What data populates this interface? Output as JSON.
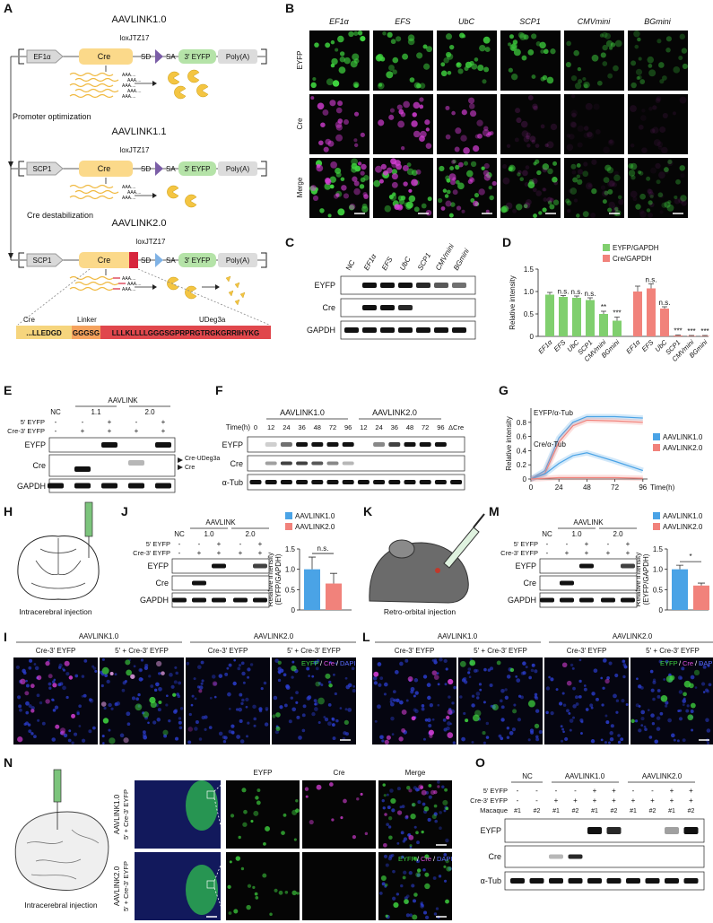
{
  "A": {
    "label": "A",
    "constructs": [
      {
        "title": "AAVLINK1.0",
        "lox": "loxJTZ17",
        "promoter": "EF1α",
        "parts": [
          "Cre",
          "SD",
          "SA",
          "3′ EYFP",
          "Poly(A)"
        ]
      },
      {
        "title": "AAVLINK1.1",
        "lox": "loxJTZ17",
        "promoter": "SCP1",
        "parts": [
          "Cre",
          "SD",
          "SA",
          "3′ EYFP",
          "Poly(A)"
        ]
      },
      {
        "title": "AAVLINK2.0",
        "lox": "loxJTZ17",
        "promoter": "SCP1",
        "parts": [
          "Cre",
          "SD",
          "SA",
          "3′ EYFP",
          "Poly(A)"
        ]
      }
    ],
    "polyA_tail": "AAA....",
    "steps": [
      "Promoter optimization",
      "Cre destabilization"
    ],
    "fusion_labels": [
      "Cre",
      "Linker",
      "UDeg3a"
    ],
    "sequence": [
      "...LLEDGD",
      "GGGSG",
      "LLLKLLLLGGGSGPRPRGTRGKGRRIHYKG"
    ]
  },
  "B": {
    "label": "B",
    "columns": [
      "EF1α",
      "EFS",
      "UbC",
      "SCP1",
      "CMVmini",
      "BGmini"
    ],
    "rows": [
      "EYFP",
      "Cre",
      "Merge"
    ]
  },
  "C": {
    "label": "C",
    "lanes": [
      "NC",
      "EF1α",
      "EFS",
      "UbC",
      "SCP1",
      "CMVmini",
      "BGmini"
    ],
    "rows": [
      "EYFP",
      "Cre",
      "GAPDH"
    ]
  },
  "E": {
    "label": "E",
    "group": "AAVLINK",
    "lanes": [
      "NC",
      "1.1",
      "2.0"
    ],
    "conditions": [
      {
        "name": "5′ EYFP",
        "signs": [
          "-",
          "-",
          "+",
          "-",
          "+"
        ]
      },
      {
        "name": "Cre-3′ EYFP",
        "signs": [
          "-",
          "+",
          "+",
          "+",
          "+"
        ]
      }
    ],
    "rows": [
      "EYFP",
      "Cre",
      "GAPDH"
    ],
    "arrows": [
      "Cre-UDeg3a",
      "Cre"
    ]
  },
  "F": {
    "label": "F",
    "groups": [
      "AAVLINK1.0",
      "AAVLINK2.0"
    ],
    "time_label": "Time(h)",
    "lanes": [
      "0",
      "12",
      "24",
      "36",
      "48",
      "72",
      "96",
      "12",
      "24",
      "36",
      "48",
      "72",
      "96",
      "ΔCre"
    ],
    "rows": [
      "EYFP",
      "Cre",
      "α-Tub"
    ]
  },
  "H": {
    "label": "H",
    "caption": "Intracerebral injection"
  },
  "J": {
    "label": "J",
    "group": "AAVLINK",
    "lanes": [
      "NC",
      "1.0",
      "2.0"
    ],
    "conditions": [
      {
        "name": "5′ EYFP",
        "signs": [
          "-",
          "-",
          "+",
          "-",
          "+"
        ]
      },
      {
        "name": "Cre-3′ EYFP",
        "signs": [
          "-",
          "+",
          "+",
          "+",
          "+"
        ]
      }
    ],
    "rows": [
      "EYFP",
      "Cre",
      "GAPDH"
    ]
  },
  "K": {
    "label": "K",
    "caption": "Retro-orbital injection"
  },
  "M": {
    "label": "M",
    "group": "AAVLINK",
    "lanes": [
      "NC",
      "1.0",
      "2.0"
    ],
    "conditions": [
      {
        "name": "5′ EYFP",
        "signs": [
          "-",
          "-",
          "+",
          "-",
          "+"
        ]
      },
      {
        "name": "Cre-3′ EYFP",
        "signs": [
          "-",
          "+",
          "+",
          "+",
          "+"
        ]
      }
    ],
    "rows": [
      "EYFP",
      "Cre",
      "GAPDH"
    ]
  },
  "I": {
    "label": "I",
    "groups": [
      "AAVLINK1.0",
      "AAVLINK2.0"
    ],
    "conditions": [
      "Cre-3′ EYFP",
      "5′ + Cre-3′ EYFP",
      "Cre-3′ EYFP",
      "5′ + Cre-3′ EYFP"
    ],
    "stain": [
      "EYFP",
      "/",
      "Cre",
      "/",
      "DAPI"
    ]
  },
  "L": {
    "label": "L",
    "groups": [
      "AAVLINK1.0",
      "AAVLINK2.0"
    ],
    "conditions": [
      "Cre-3′ EYFP",
      "5′ + Cre-3′ EYFP",
      "Cre-3′ EYFP",
      "5′ + Cre-3′ EYFP"
    ],
    "stain": [
      "EYFP",
      "/",
      "Cre",
      "/",
      "DAPI"
    ]
  },
  "N": {
    "label": "N",
    "caption": "Intracerebral injection",
    "columns": [
      "EYFP",
      "Cre",
      "Merge"
    ],
    "rows": [
      {
        "vector": "AAVLINK1.0",
        "condition": "5′ + Cre-3′ EYFP"
      },
      {
        "vector": "AAVLINK2.0",
        "condition": "5′ + Cre-3′ EYFP"
      }
    ],
    "stain": [
      "EYFP",
      "/",
      "Cre",
      "/",
      "DAPI"
    ]
  },
  "O": {
    "label": "O",
    "groups": [
      "NC",
      "AAVLINK1.0",
      "AAVLINK2.0"
    ],
    "conditions": [
      {
        "name": "5′ EYFP",
        "signs": [
          "-",
          "-",
          "-",
          "-",
          "+",
          "+",
          "-",
          "-",
          "+",
          "+"
        ]
      },
      {
        "name": "Cre-3′ EYFP",
        "signs": [
          "-",
          "-",
          "+",
          "+",
          "+",
          "+",
          "+",
          "+",
          "+",
          "+"
        ]
      },
      {
        "name": "Macaque",
        "signs": [
          "#1",
          "#2",
          "#1",
          "#2",
          "#1",
          "#2",
          "#1",
          "#2",
          "#1",
          "#2"
        ]
      }
    ],
    "rows": [
      "EYFP",
      "Cre",
      "α-Tub"
    ]
  },
  "chart_data": [
    {
      "panel": "D",
      "type": "bar",
      "ylabel": "Relative intensity",
      "categories": [
        "EF1α",
        "EFS",
        "UbC",
        "SCP1",
        "CMVmini",
        "BGmini"
      ],
      "series": [
        {
          "name": "EYFP/GAPDH",
          "color": "#80cf6e",
          "values": [
            0.93,
            0.88,
            0.86,
            0.81,
            0.5,
            0.35
          ],
          "errors": [
            0.05,
            0.03,
            0.04,
            0.05,
            0.06,
            0.08
          ],
          "annotations": [
            null,
            "n.s.",
            "n.s.",
            "n.s.",
            "**",
            "***"
          ]
        },
        {
          "name": "Cre/GAPDH",
          "color": "#f1827b",
          "values": [
            1.0,
            1.07,
            0.62,
            0.02,
            0.01,
            0.01
          ],
          "errors": [
            0.12,
            0.1,
            0.04,
            0.01,
            0.01,
            0.01
          ],
          "annotations": [
            null,
            "n.s.",
            "n.s.",
            "***",
            "***",
            "***"
          ]
        }
      ],
      "ylim": [
        0,
        1.5
      ],
      "yticks": [
        0,
        0.5,
        {
          "value": 1,
          "label": "1.0"
        },
        1.5
      ]
    },
    {
      "panel": "G",
      "type": "line",
      "ylabel": "Relative intensity",
      "xlabel": "Time(h)",
      "x": [
        0,
        12,
        24,
        36,
        48,
        72,
        96
      ],
      "xlim": [
        0,
        100
      ],
      "xticks": [
        0,
        24,
        48,
        72,
        96
      ],
      "ylim": [
        0,
        1
      ],
      "yticks": [
        0,
        0.2,
        0.4,
        0.6,
        0.8
      ],
      "panels": [
        {
          "label": "EYFP/α-Tub",
          "series": [
            {
              "name": "AAVLINK1.0",
              "color": "#4aa3e6",
              "values": [
                0,
                0.12,
                0.58,
                0.8,
                0.88,
                0.88,
                0.86
              ]
            },
            {
              "name": "AAVLINK2.0",
              "color": "#f1827b",
              "values": [
                0,
                0.08,
                0.52,
                0.75,
                0.83,
                0.82,
                0.8
              ]
            }
          ]
        },
        {
          "label": "Cre/α-Tub",
          "series": [
            {
              "name": "AAVLINK1.0",
              "color": "#4aa3e6",
              "values": [
                0,
                0.07,
                0.22,
                0.33,
                0.37,
                0.25,
                0.12
              ]
            },
            {
              "name": "AAVLINK2.0",
              "color": "#f1827b",
              "values": [
                0,
                0.01,
                0.02,
                0.02,
                0.02,
                0.02,
                0.01
              ]
            }
          ]
        }
      ]
    },
    {
      "type": "bar",
      "ylabel": [
        "Relative intensity",
        "(EYFP/GAPDH)"
      ],
      "series": [
        {
          "name": "AAVLINK1.0",
          "color": "#4aa3e6",
          "values": [
            1.0
          ],
          "errors": [
            0.3
          ]
        },
        {
          "name": "AAVLINK2.0",
          "color": "#f1827b",
          "values": [
            0.65
          ],
          "errors": [
            0.25
          ]
        }
      ],
      "annotation": "n.s.",
      "ylim": [
        0,
        1.5
      ],
      "yticks": [
        0,
        0.5,
        {
          "value": 1,
          "label": "1.0"
        },
        1.5
      ]
    },
    {
      "type": "bar",
      "ylabel": [
        "Relative intensity",
        "(EYFP/GAPDH)"
      ],
      "series": [
        {
          "name": "AAVLINK1.0",
          "color": "#4aa3e6",
          "values": [
            1.0
          ],
          "errors": [
            0.1
          ]
        },
        {
          "name": "AAVLINK2.0",
          "color": "#f1827b",
          "values": [
            0.6
          ],
          "errors": [
            0.06
          ]
        }
      ],
      "annotation": "*",
      "ylim": [
        0,
        1.5
      ],
      "yticks": [
        0,
        0.5,
        {
          "value": 1,
          "label": "1.0"
        },
        1.5
      ]
    }
  ]
}
